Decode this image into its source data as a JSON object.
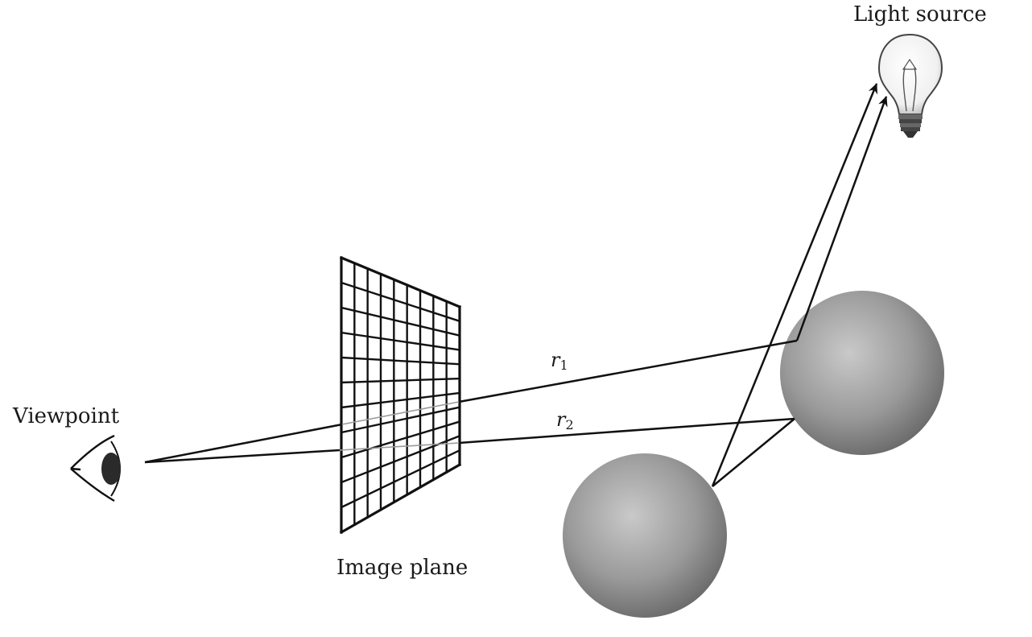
{
  "labels": {
    "light_source": "Light source",
    "viewpoint": "Viewpoint",
    "image_plane": "Image plane"
  },
  "rays": [
    {
      "symbol": "r",
      "subscript": "1"
    },
    {
      "symbol": "r",
      "subscript": "2"
    }
  ],
  "icons": {
    "eye": "eye-icon",
    "bulb": "light-bulb-icon"
  },
  "colors": {
    "line": "#111111",
    "sphere_light": "#c4c4c4",
    "sphere_dark": "#6e6e6e"
  }
}
